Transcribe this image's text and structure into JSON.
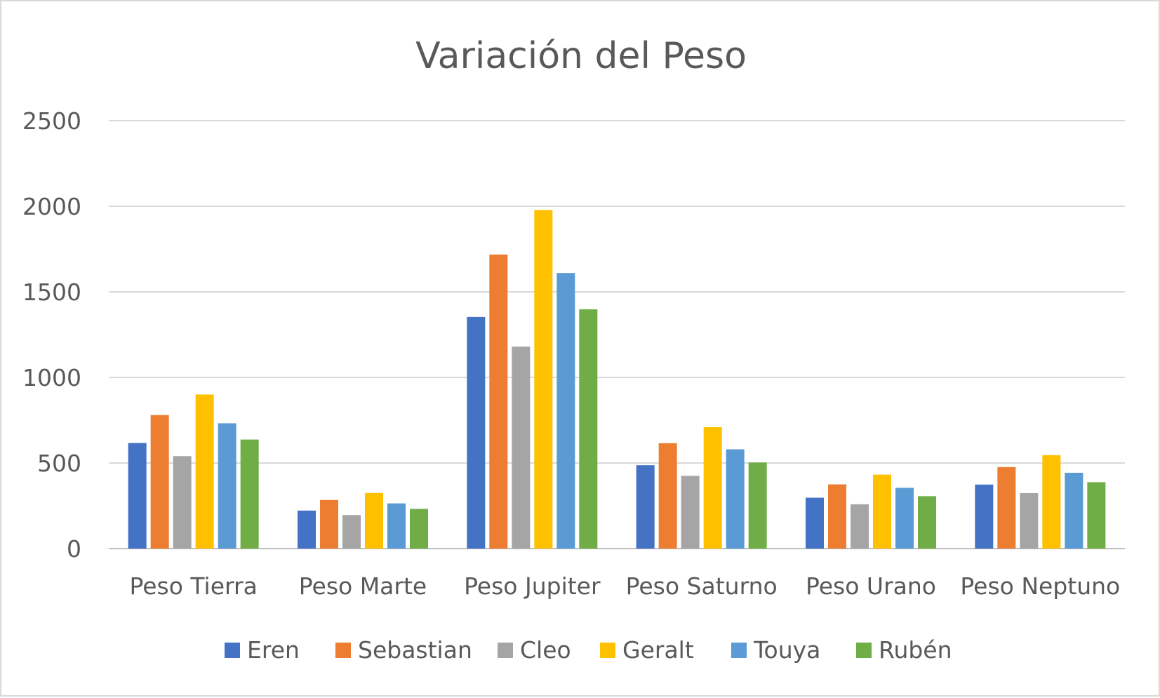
{
  "chart_data": {
    "type": "bar",
    "title": "Variación del Peso",
    "xlabel": "",
    "ylabel": "",
    "categories": [
      "Peso Tierra",
      "Peso Marte",
      "Peso Jupiter",
      "Peso Saturno",
      "Peso Urano",
      "Peso Neptuno"
    ],
    "series": [
      {
        "name": "Eren",
        "color": "#4472C4",
        "values": [
          617,
          222,
          1353,
          487,
          297,
          374
        ]
      },
      {
        "name": "Sebastian",
        "color": "#ED7D31",
        "values": [
          780,
          284,
          1718,
          616,
          375,
          476
        ]
      },
      {
        "name": "Cleo",
        "color": "#A5A5A5",
        "values": [
          540,
          196,
          1180,
          425,
          259,
          324
        ]
      },
      {
        "name": "Geralt",
        "color": "#FFC000",
        "values": [
          900,
          325,
          1978,
          710,
          432,
          546
        ]
      },
      {
        "name": "Touya",
        "color": "#5B9BD5",
        "values": [
          732,
          264,
          1610,
          580,
          355,
          443
        ]
      },
      {
        "name": "Rubén",
        "color": "#70AD47",
        "values": [
          637,
          232,
          1398,
          503,
          306,
          388
        ]
      }
    ],
    "ylim": [
      0,
      2500
    ],
    "yticks": [
      0,
      500,
      1000,
      1500,
      2000,
      2500
    ],
    "grid": true,
    "legend_position": "bottom"
  }
}
